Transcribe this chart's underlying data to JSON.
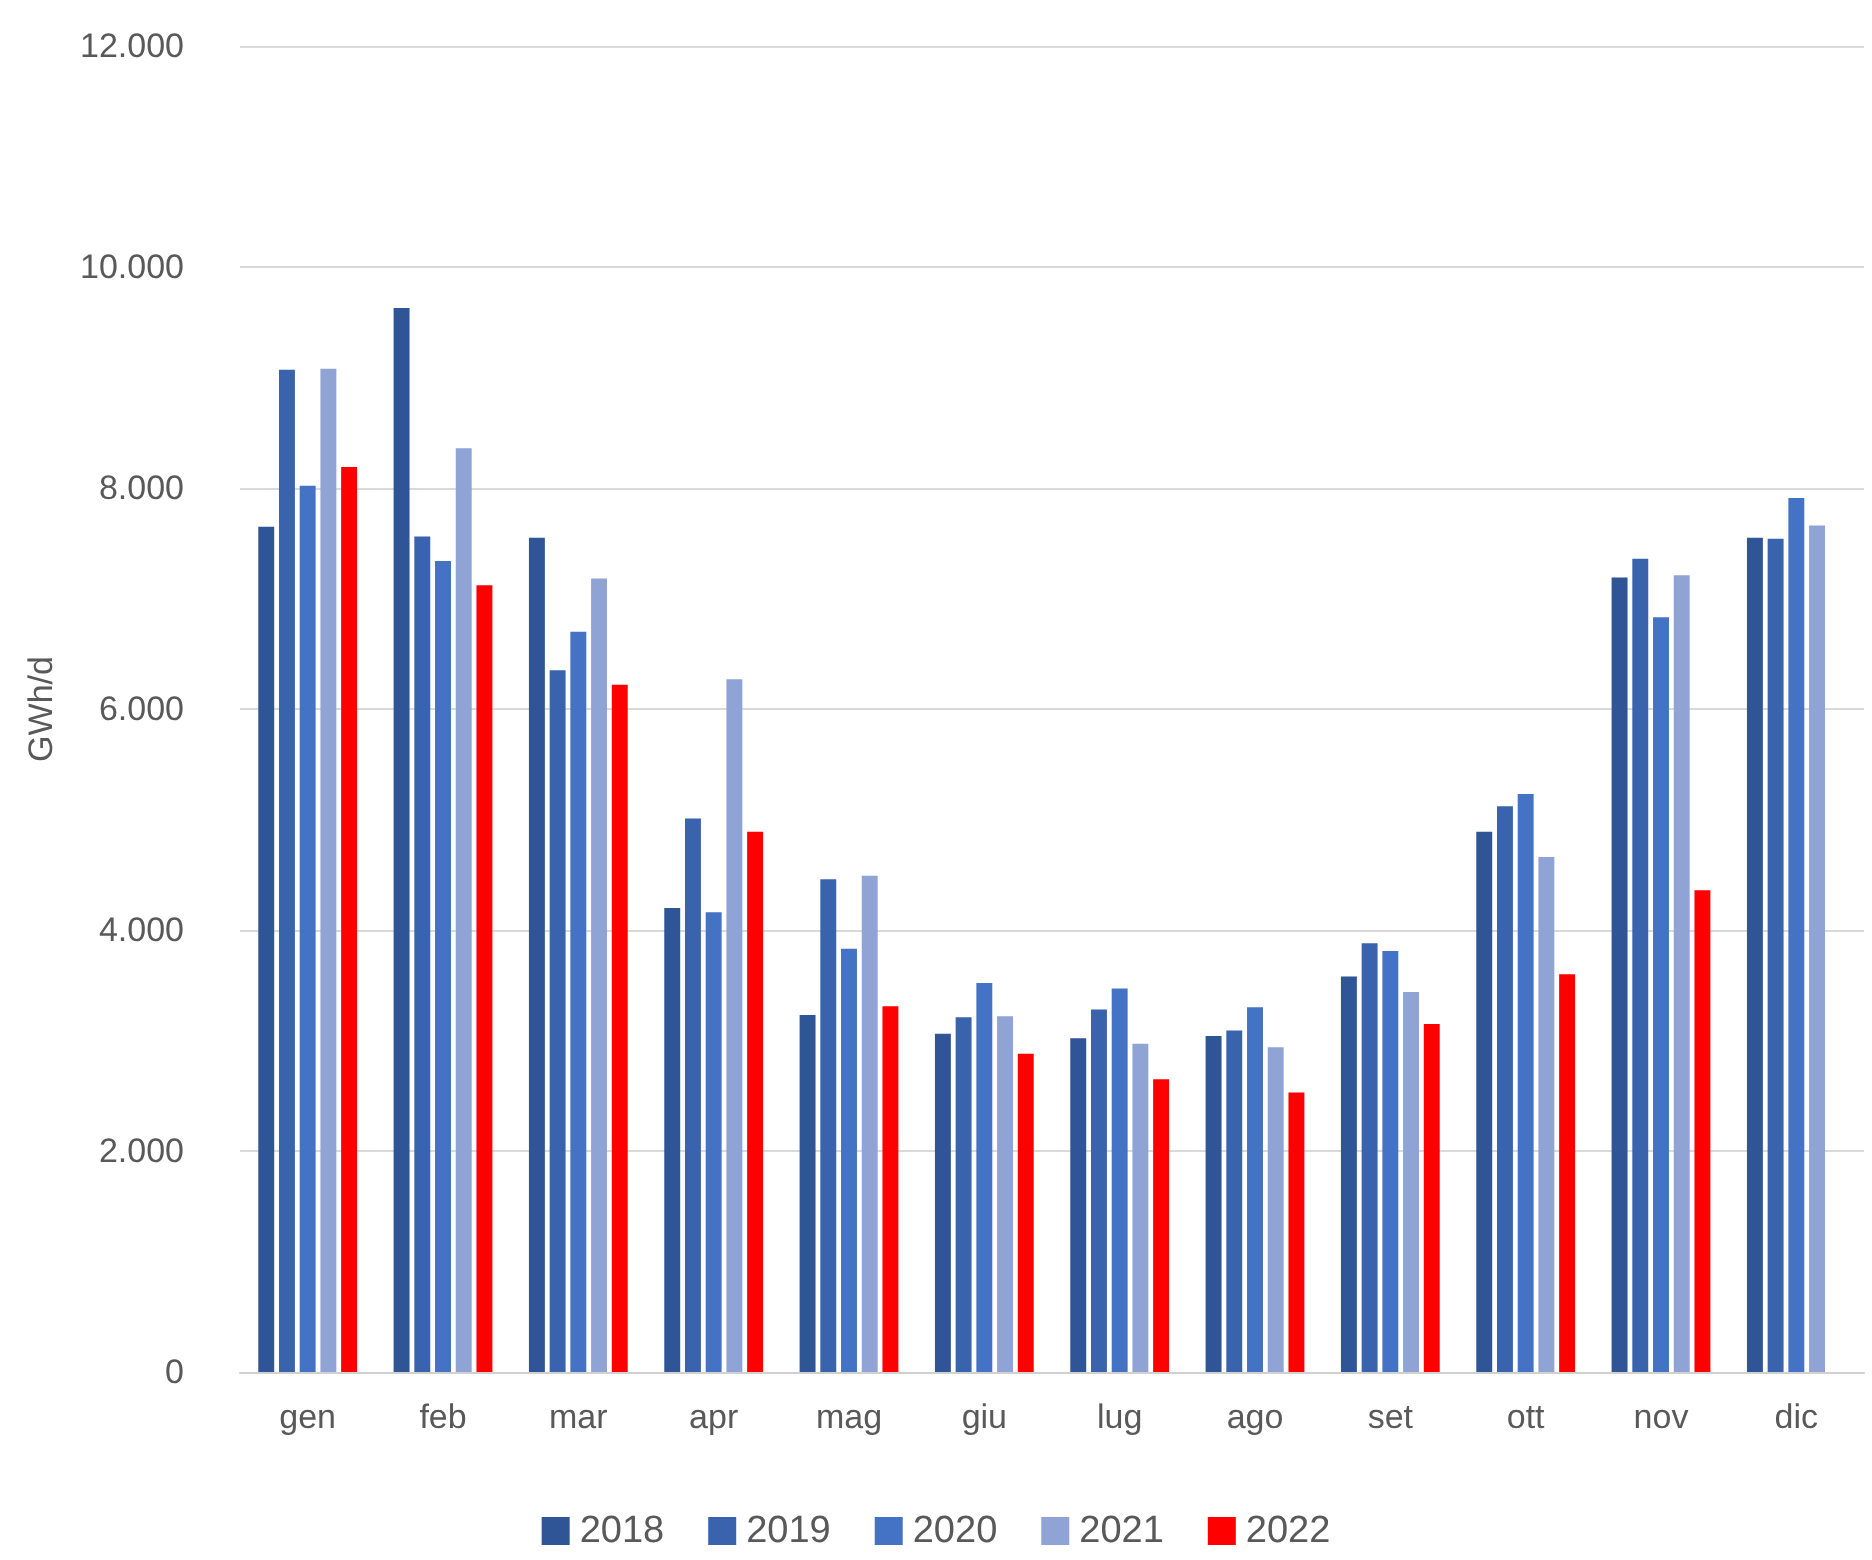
{
  "chart_data": {
    "type": "bar",
    "ylabel": "GWh/d",
    "categories": [
      "gen",
      "feb",
      "mar",
      "apr",
      "mag",
      "giu",
      "lug",
      "ago",
      "set",
      "ott",
      "nov",
      "dic"
    ],
    "series": [
      {
        "name": "2018",
        "color": "#2f5597",
        "values": [
          7650,
          9630,
          7550,
          4200,
          3230,
          3060,
          3020,
          3040,
          3580,
          4890,
          7190,
          7550
        ]
      },
      {
        "name": "2019",
        "color": "#3a63ae",
        "values": [
          9070,
          7560,
          6350,
          5010,
          4460,
          3210,
          3280,
          3090,
          3880,
          5120,
          7360,
          7540
        ]
      },
      {
        "name": "2020",
        "color": "#4472c4",
        "values": [
          8020,
          7340,
          6700,
          4160,
          3830,
          3520,
          3470,
          3300,
          3810,
          5230,
          6830,
          7910
        ]
      },
      {
        "name": "2021",
        "color": "#8fa3d5",
        "values": [
          9080,
          8360,
          7180,
          6270,
          4490,
          3220,
          2970,
          2940,
          3440,
          4660,
          7210,
          7660
        ]
      },
      {
        "name": "2022",
        "color": "#ff0000",
        "values": [
          8190,
          7120,
          6220,
          4890,
          3310,
          2880,
          2650,
          2530,
          3150,
          3600,
          4360,
          null
        ]
      }
    ],
    "ylim": [
      0,
      12000
    ],
    "yticks": [
      0,
      {
        "value": 2000,
        "label": "2.000"
      },
      {
        "value": 4000,
        "label": "4.000"
      },
      {
        "value": 6000,
        "label": "6.000"
      },
      {
        "value": 8000,
        "label": "8.000"
      },
      {
        "value": 10000,
        "label": "10.000"
      },
      {
        "value": 12000,
        "label": "12.000"
      }
    ],
    "grid": "y",
    "legend": "bottom"
  }
}
